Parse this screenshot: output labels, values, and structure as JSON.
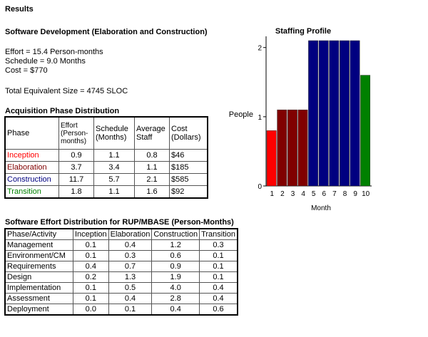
{
  "results_title": "Results",
  "summary": {
    "title": "Software Development (Elaboration and Construction)",
    "effort": "Effort = 15.4 Person-months",
    "schedule": "Schedule = 9.0 Months",
    "cost": "Cost = $770",
    "size": "Total Equivalent Size = 4745 SLOC"
  },
  "acquisition": {
    "title": "Acquisition Phase Distribution",
    "headers": [
      "Phase",
      "Effort (Person-months)",
      "Schedule (Months)",
      "Average Staff",
      "Cost (Dollars)"
    ],
    "header_lines": {
      "effort": [
        "Effort",
        "(Person-",
        "months)"
      ],
      "schedule": [
        "Schedule",
        "(Months)"
      ],
      "staff": [
        "Average",
        "Staff"
      ],
      "cost": [
        "Cost",
        "(Dollars)"
      ]
    },
    "rows": [
      {
        "phase": "Inception",
        "effort": "0.9",
        "schedule": "1.1",
        "staff": "0.8",
        "cost": "$46",
        "color": "#ff0000"
      },
      {
        "phase": "Elaboration",
        "effort": "3.7",
        "schedule": "3.4",
        "staff": "1.1",
        "cost": "$185",
        "color": "#800000"
      },
      {
        "phase": "Construction",
        "effort": "11.7",
        "schedule": "5.7",
        "staff": "2.1",
        "cost": "$585",
        "color": "#000080"
      },
      {
        "phase": "Transition",
        "effort": "1.8",
        "schedule": "1.1",
        "staff": "1.6",
        "cost": "$92",
        "color": "#008000"
      }
    ]
  },
  "rup": {
    "title": "Software Effort Distribution for RUP/MBASE (Person-Months)",
    "headers": [
      "Phase/Activity",
      "Inception",
      "Elaboration",
      "Construction",
      "Transition"
    ],
    "rows": [
      [
        "Management",
        "0.1",
        "0.4",
        "1.2",
        "0.3"
      ],
      [
        "Environment/CM",
        "0.1",
        "0.3",
        "0.6",
        "0.1"
      ],
      [
        "Requirements",
        "0.4",
        "0.7",
        "0.9",
        "0.1"
      ],
      [
        "Design",
        "0.2",
        "1.3",
        "1.9",
        "0.1"
      ],
      [
        "Implementation",
        "0.1",
        "0.5",
        "4.0",
        "0.4"
      ],
      [
        "Assessment",
        "0.1",
        "0.4",
        "2.8",
        "0.4"
      ],
      [
        "Deployment",
        "0.0",
        "0.1",
        "0.4",
        "0.6"
      ]
    ]
  },
  "chart_data": {
    "type": "bar",
    "title": "Staffing Profile",
    "xlabel": "Month",
    "ylabel": "People",
    "categories": [
      "1",
      "2",
      "3",
      "4",
      "5",
      "6",
      "7",
      "8",
      "9",
      "10"
    ],
    "values": [
      0.8,
      1.1,
      1.1,
      1.1,
      2.1,
      2.1,
      2.1,
      2.1,
      2.1,
      1.6
    ],
    "colors": [
      "#ff0000",
      "#800000",
      "#800000",
      "#800000",
      "#000080",
      "#000080",
      "#000080",
      "#000080",
      "#000080",
      "#008000"
    ],
    "yticks": [
      0,
      1,
      2
    ],
    "ylim": [
      0,
      2.1
    ],
    "grid": false,
    "legend": "none"
  }
}
